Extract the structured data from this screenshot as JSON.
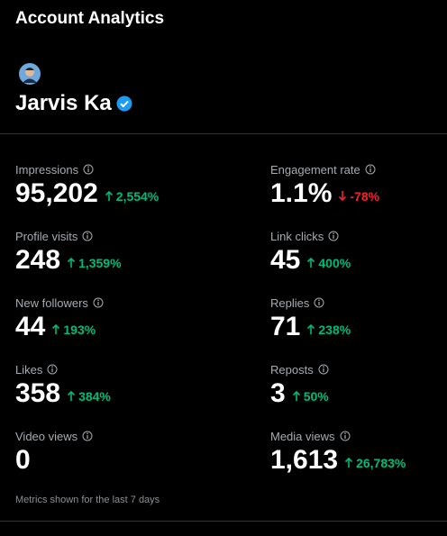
{
  "header": {
    "title": "Account Analytics"
  },
  "profile": {
    "name": "Jarvis Ka"
  },
  "metrics": [
    {
      "label": "Impressions",
      "value": "95,202",
      "change": "2,554%"
    },
    {
      "label": "Engagement rate",
      "value": "1.1%",
      "change": "-78%"
    },
    {
      "label": "Profile visits",
      "value": "248",
      "change": "1,359%"
    },
    {
      "label": "Link clicks",
      "value": "45",
      "change": "400%"
    },
    {
      "label": "New followers",
      "value": "44",
      "change": "193%"
    },
    {
      "label": "Replies",
      "value": "71",
      "change": "238%"
    },
    {
      "label": "Likes",
      "value": "358",
      "change": "384%"
    },
    {
      "label": "Reposts",
      "value": "3",
      "change": "50%"
    },
    {
      "label": "Video views",
      "value": "0"
    },
    {
      "label": "Media views",
      "value": "1,613",
      "change": "26,783%"
    }
  ],
  "footer": {
    "note": "Metrics shown for the last 7 days"
  }
}
